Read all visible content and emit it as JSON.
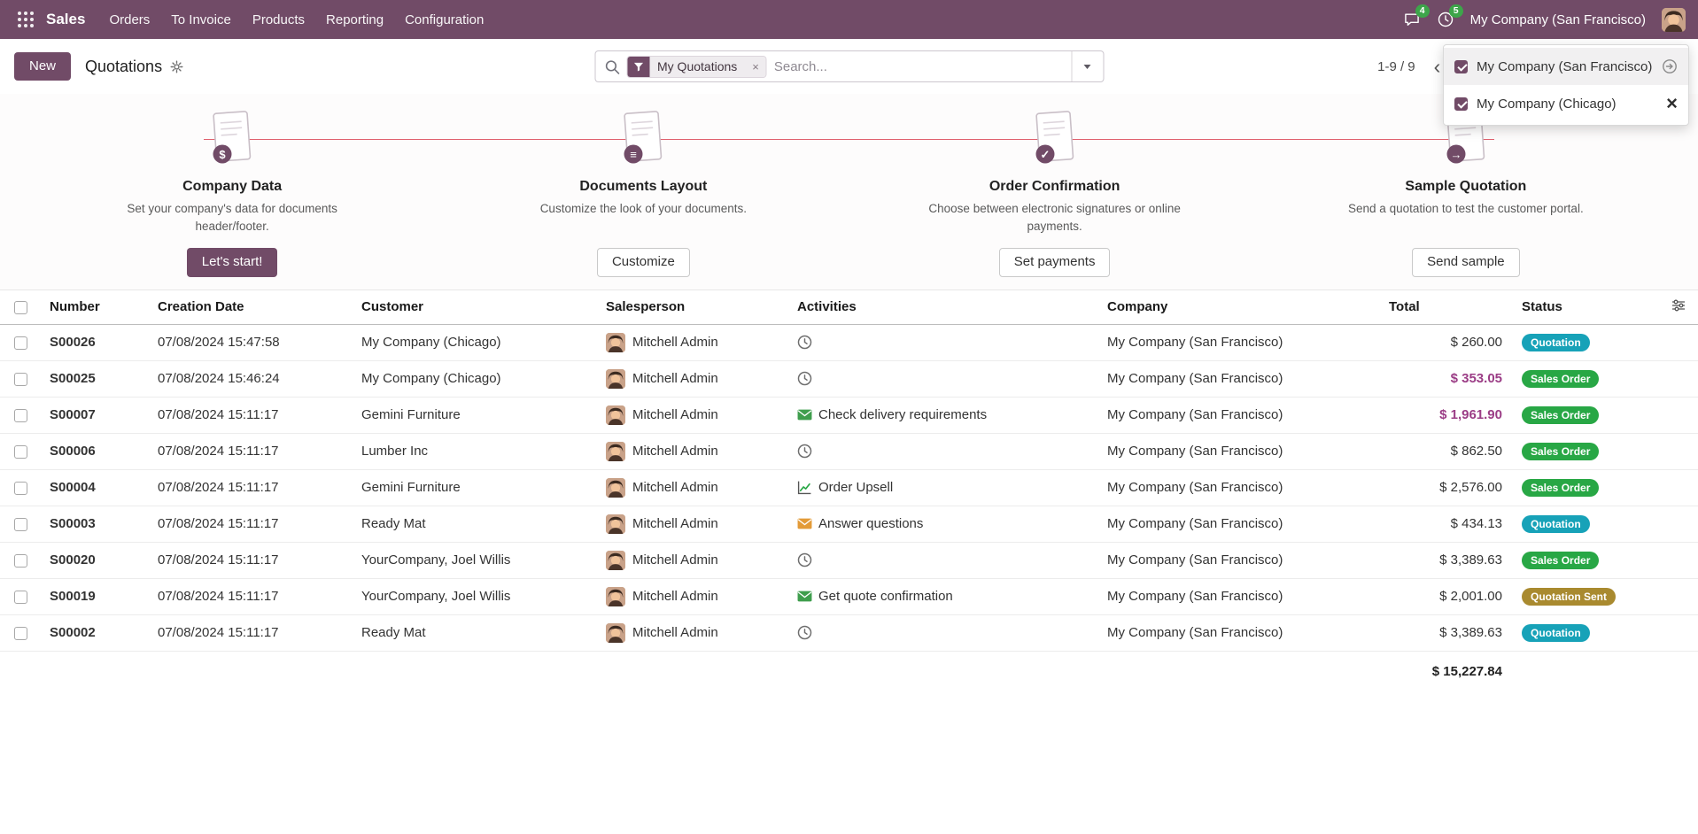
{
  "colors": {
    "accent": "#714B67",
    "notification_badge": "#3da54a",
    "badge_quotation": "#17a2b8",
    "badge_sales_order": "#28a745",
    "badge_quotation_sent": "#a98a2f",
    "highlight_total": "#9b3d86",
    "onboarding_line": "#e0606e"
  },
  "navbar": {
    "brand": "Sales",
    "menus": [
      "Orders",
      "To Invoice",
      "Products",
      "Reporting",
      "Configuration"
    ],
    "messages_badge": "4",
    "activities_badge": "5",
    "company": "My Company (San Francisco)"
  },
  "control_panel": {
    "new_button": "New",
    "title": "Quotations",
    "search": {
      "facet_label": "My Quotations",
      "placeholder": "Search..."
    },
    "pager": "1-9 / 9"
  },
  "company_switcher": {
    "options": [
      {
        "label": "My Company (San Francisco)",
        "checked": true
      },
      {
        "label": "My Company (Chicago)",
        "checked": true
      }
    ]
  },
  "onboarding": {
    "steps": [
      {
        "title": "Company Data",
        "description": "Set your company's data for documents header/footer.",
        "button": "Let's start!",
        "symbol": "$"
      },
      {
        "title": "Documents Layout",
        "description": "Customize the look of your documents.",
        "button": "Customize",
        "symbol": "≡"
      },
      {
        "title": "Order Confirmation",
        "description": "Choose between electronic signatures or online payments.",
        "button": "Set payments",
        "symbol": "✓"
      },
      {
        "title": "Sample Quotation",
        "description": "Send a quotation to test the customer portal.",
        "button": "Send sample",
        "symbol": "→"
      }
    ]
  },
  "table": {
    "headers": {
      "number": "Number",
      "creation_date": "Creation Date",
      "customer": "Customer",
      "salesperson": "Salesperson",
      "activities": "Activities",
      "company": "Company",
      "total": "Total",
      "status": "Status"
    },
    "rows": [
      {
        "number": "S00026",
        "creation_date": "07/08/2024 15:47:58",
        "customer": "My Company (Chicago)",
        "salesperson": "Mitchell Admin",
        "activity": {
          "icon": "clock",
          "label": "",
          "color": "#6e6e6e"
        },
        "company": "My Company (San Francisco)",
        "total": "$ 260.00",
        "total_highlight": false,
        "status": {
          "label": "Quotation",
          "variant": "info"
        }
      },
      {
        "number": "S00025",
        "creation_date": "07/08/2024 15:46:24",
        "customer": "My Company (Chicago)",
        "salesperson": "Mitchell Admin",
        "activity": {
          "icon": "clock",
          "label": "",
          "color": "#6e6e6e"
        },
        "company": "My Company (San Francisco)",
        "total": "$ 353.05",
        "total_highlight": true,
        "status": {
          "label": "Sales Order",
          "variant": "success"
        }
      },
      {
        "number": "S00007",
        "creation_date": "07/08/2024 15:11:17",
        "customer": "Gemini Furniture",
        "salesperson": "Mitchell Admin",
        "activity": {
          "icon": "mail",
          "label": "Check delivery requirements",
          "color": "#3f9e4d"
        },
        "company": "My Company (San Francisco)",
        "total": "$ 1,961.90",
        "total_highlight": true,
        "status": {
          "label": "Sales Order",
          "variant": "success"
        }
      },
      {
        "number": "S00006",
        "creation_date": "07/08/2024 15:11:17",
        "customer": "Lumber Inc",
        "salesperson": "Mitchell Admin",
        "activity": {
          "icon": "clock",
          "label": "",
          "color": "#6e6e6e"
        },
        "company": "My Company (San Francisco)",
        "total": "$ 862.50",
        "total_highlight": false,
        "status": {
          "label": "Sales Order",
          "variant": "success"
        }
      },
      {
        "number": "S00004",
        "creation_date": "07/08/2024 15:11:17",
        "customer": "Gemini Furniture",
        "salesperson": "Mitchell Admin",
        "activity": {
          "icon": "chart",
          "label": "Order Upsell",
          "color": "#28a745"
        },
        "company": "My Company (San Francisco)",
        "total": "$ 2,576.00",
        "total_highlight": false,
        "status": {
          "label": "Sales Order",
          "variant": "success"
        }
      },
      {
        "number": "S00003",
        "creation_date": "07/08/2024 15:11:17",
        "customer": "Ready Mat",
        "salesperson": "Mitchell Admin",
        "activity": {
          "icon": "mail",
          "label": "Answer questions",
          "color": "#e39b38"
        },
        "company": "My Company (San Francisco)",
        "total": "$ 434.13",
        "total_highlight": false,
        "status": {
          "label": "Quotation",
          "variant": "info"
        }
      },
      {
        "number": "S00020",
        "creation_date": "07/08/2024 15:11:17",
        "customer": "YourCompany, Joel Willis",
        "salesperson": "Mitchell Admin",
        "activity": {
          "icon": "clock",
          "label": "",
          "color": "#6e6e6e"
        },
        "company": "My Company (San Francisco)",
        "total": "$ 3,389.63",
        "total_highlight": false,
        "status": {
          "label": "Sales Order",
          "variant": "success"
        }
      },
      {
        "number": "S00019",
        "creation_date": "07/08/2024 15:11:17",
        "customer": "YourCompany, Joel Willis",
        "salesperson": "Mitchell Admin",
        "activity": {
          "icon": "mail",
          "label": "Get quote confirmation",
          "color": "#3f9e4d"
        },
        "company": "My Company (San Francisco)",
        "total": "$ 2,001.00",
        "total_highlight": false,
        "status": {
          "label": "Quotation Sent",
          "variant": "sent"
        }
      },
      {
        "number": "S00002",
        "creation_date": "07/08/2024 15:11:17",
        "customer": "Ready Mat",
        "salesperson": "Mitchell Admin",
        "activity": {
          "icon": "clock",
          "label": "",
          "color": "#6e6e6e"
        },
        "company": "My Company (San Francisco)",
        "total": "$ 3,389.63",
        "total_highlight": false,
        "status": {
          "label": "Quotation",
          "variant": "info"
        }
      }
    ],
    "footer_total": "$ 15,227.84"
  }
}
